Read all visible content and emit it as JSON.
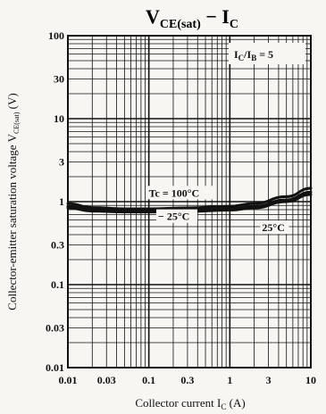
{
  "chart_data": {
    "type": "line",
    "title": "V",
    "title_subscript": "CE(sat)",
    "title_dash": " − I",
    "title_subscript2": "C",
    "xlabel": "Collector current I",
    "xlabel_sub": "C",
    "xlabel_unit": " (A)",
    "ylabel": "Collector-emitter saturation voltage V",
    "ylabel_sub": "CE(sat)",
    "ylabel_unit": " (V)",
    "x_scale": "log",
    "y_scale": "log",
    "xlim": [
      0.01,
      10
    ],
    "ylim": [
      0.01,
      100
    ],
    "x_ticks": [
      {
        "value": 0.01,
        "label": "0.01"
      },
      {
        "value": 0.03,
        "label": "0.03"
      },
      {
        "value": 0.1,
        "label": "0.1"
      },
      {
        "value": 0.3,
        "label": "0.3"
      },
      {
        "value": 1,
        "label": "1"
      },
      {
        "value": 3,
        "label": "3"
      },
      {
        "value": 10,
        "label": "10"
      }
    ],
    "y_ticks": [
      {
        "value": 100,
        "label": "100"
      },
      {
        "value": 30,
        "label": "30"
      },
      {
        "value": 10,
        "label": "10"
      },
      {
        "value": 3,
        "label": "3"
      },
      {
        "value": 1,
        "label": "1"
      },
      {
        "value": 0.3,
        "label": "0.3"
      },
      {
        "value": 0.1,
        "label": "0.1"
      },
      {
        "value": 0.03,
        "label": "0.03"
      },
      {
        "value": 0.01,
        "label": "0.01"
      }
    ],
    "grid": true,
    "condition": {
      "text": "I",
      "sub1": "C",
      "mid": "/I",
      "sub2": "B",
      "tail": " = 5"
    },
    "series": [
      {
        "name": "Tc = 100°C",
        "x": [
          0.01,
          0.02,
          0.05,
          0.1,
          0.3,
          1,
          2,
          5,
          10
        ],
        "y": [
          0.95,
          0.85,
          0.82,
          0.82,
          0.84,
          0.88,
          0.95,
          1.15,
          1.45
        ]
      },
      {
        "name": "−25°C",
        "x": [
          0.01,
          0.02,
          0.05,
          0.1,
          0.3,
          1,
          2,
          5,
          10
        ],
        "y": [
          0.88,
          0.8,
          0.78,
          0.78,
          0.79,
          0.82,
          0.88,
          1.05,
          1.3
        ]
      },
      {
        "name": "25°C",
        "x": [
          0.01,
          0.02,
          0.05,
          0.1,
          0.3,
          1,
          2,
          5,
          10
        ],
        "y": [
          0.84,
          0.77,
          0.75,
          0.75,
          0.76,
          0.79,
          0.84,
          1.0,
          1.22
        ]
      }
    ],
    "annotations": [
      {
        "text": "Tc = 100°C",
        "x": 0.1,
        "y": 1.15
      },
      {
        "text": "− 25°C",
        "x": 0.13,
        "y": 0.6
      },
      {
        "text": "25°C",
        "x": 2.5,
        "y": 0.44
      }
    ]
  }
}
